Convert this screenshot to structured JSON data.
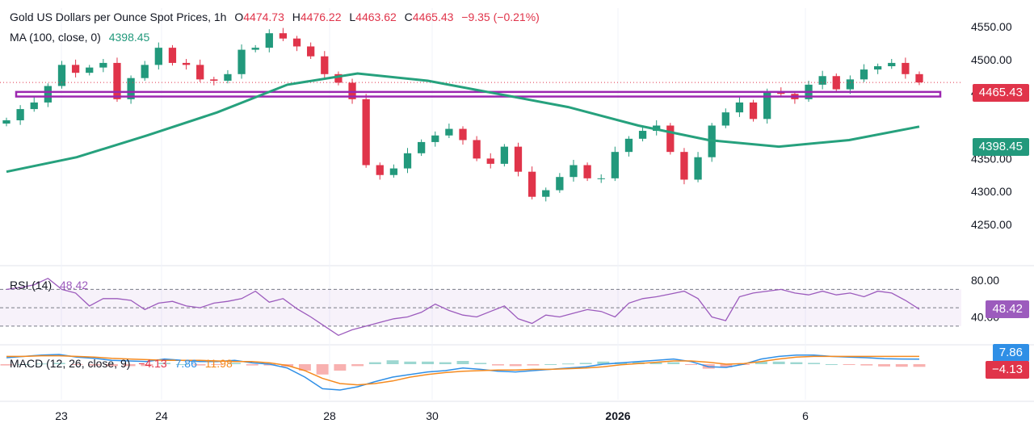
{
  "legend": {
    "title": "Gold US Dollars per Ounce Spot Prices, 1h",
    "o_label": "O",
    "o_value": "4474.73",
    "h_label": "H",
    "h_value": "4476.22",
    "l_label": "L",
    "l_value": "4463.62",
    "c_label": "C",
    "c_value": "4465.43",
    "change": "−9.35 (−0.21%)",
    "ma_label": "MA (100, close, 0)",
    "ma_value": "4398.45",
    "rsi_label": "RSI (14)",
    "rsi_value": "48.42",
    "macd_label": "MACD (12, 26, close, 9)",
    "macd_hist": "−4.13",
    "macd_line": "7.86",
    "macd_signal": "11.98"
  },
  "badges": {
    "price": "4465.43",
    "ma": "4398.45",
    "rsi": "48.42",
    "macd_line": "7.86",
    "macd_hist": "−4.13"
  },
  "colors": {
    "up": "#22997c",
    "down": "#e0344a",
    "ma": "#26a17d",
    "support": "#9c27b0",
    "rsi": "#9c5bbd",
    "macd": "#2f8fe6",
    "signal": "#f58a1f"
  },
  "chart_data": [
    {
      "type": "candlestick",
      "title": "Gold US Dollars per Ounce Spot Prices, 1h",
      "ylim": [
        4250,
        4560
      ],
      "y_ticks": [
        "4550.00",
        "4500.00",
        "4450.00",
        "4350.00",
        "4300.00",
        "4250.00"
      ],
      "x_ticks": [
        "23",
        "24",
        "28",
        "30",
        "2026",
        "6"
      ],
      "support_zone": [
        4444,
        4451
      ],
      "last_price": 4465.43,
      "close_path": [
        {
          "x": "22 Dec",
          "close": 4408
        },
        {
          "x": "22 Dec",
          "close": 4425
        },
        {
          "x": "22 Dec",
          "close": 4435
        },
        {
          "x": "23 Dec",
          "close": 4460
        },
        {
          "x": "23 Dec",
          "close": 4492
        },
        {
          "x": "23 Dec",
          "close": 4480
        },
        {
          "x": "23 Dec",
          "close": 4488
        },
        {
          "x": "23 Dec",
          "close": 4495
        },
        {
          "x": "23 Dec",
          "close": 4440
        },
        {
          "x": "23 Dec",
          "close": 4472
        },
        {
          "x": "24 Dec",
          "close": 4492
        },
        {
          "x": "24 Dec",
          "close": 4518
        },
        {
          "x": "24 Dec",
          "close": 4495
        },
        {
          "x": "24 Dec",
          "close": 4492
        },
        {
          "x": "26 Dec",
          "close": 4470
        },
        {
          "x": "26 Dec",
          "close": 4468
        },
        {
          "x": "26 Dec",
          "close": 4478
        },
        {
          "x": "26 Dec",
          "close": 4515
        },
        {
          "x": "26 Dec",
          "close": 4518
        },
        {
          "x": "26 Dec",
          "close": 4540
        },
        {
          "x": "26 Dec",
          "close": 4532
        },
        {
          "x": "28 Dec",
          "close": 4520
        },
        {
          "x": "28 Dec",
          "close": 4505
        },
        {
          "x": "28 Dec",
          "close": 4478
        },
        {
          "x": "28 Dec",
          "close": 4465
        },
        {
          "x": "29 Dec",
          "close": 4440
        },
        {
          "x": "29 Dec",
          "close": 4340
        },
        {
          "x": "29 Dec",
          "close": 4325
        },
        {
          "x": "29 Dec",
          "close": 4335
        },
        {
          "x": "30 Dec",
          "close": 4358
        },
        {
          "x": "30 Dec",
          "close": 4375
        },
        {
          "x": "30 Dec",
          "close": 4385
        },
        {
          "x": "30 Dec",
          "close": 4395
        },
        {
          "x": "30 Dec",
          "close": 4378
        },
        {
          "x": "31 Dec",
          "close": 4350
        },
        {
          "x": "31 Dec",
          "close": 4342
        },
        {
          "x": "31 Dec",
          "close": 4368
        },
        {
          "x": "31 Dec",
          "close": 4330
        },
        {
          "x": "31 Dec",
          "close": 4292
        },
        {
          "x": "31 Dec",
          "close": 4302
        },
        {
          "x": "31 Dec",
          "close": 4322
        },
        {
          "x": "1 Jan",
          "close": 4340
        },
        {
          "x": "1 Jan",
          "close": 4320
        },
        {
          "x": "2 Jan",
          "close": 4320
        },
        {
          "x": "2 Jan",
          "close": 4360
        },
        {
          "x": "2 Jan",
          "close": 4380
        },
        {
          "x": "2 Jan",
          "close": 4392
        },
        {
          "x": "2 Jan",
          "close": 4400
        },
        {
          "x": "2 Jan",
          "close": 4360
        },
        {
          "x": "2 Jan",
          "close": 4318
        },
        {
          "x": "4 Jan",
          "close": 4352
        },
        {
          "x": "5 Jan",
          "close": 4400
        },
        {
          "x": "5 Jan",
          "close": 4420
        },
        {
          "x": "5 Jan",
          "close": 4435
        },
        {
          "x": "5 Jan",
          "close": 4410
        },
        {
          "x": "5 Jan",
          "close": 4450
        },
        {
          "x": "5 Jan",
          "close": 4448
        },
        {
          "x": "6 Jan",
          "close": 4440
        },
        {
          "x": "6 Jan",
          "close": 4462
        },
        {
          "x": "6 Jan",
          "close": 4475
        },
        {
          "x": "6 Jan",
          "close": 4455
        },
        {
          "x": "6 Jan",
          "close": 4470
        },
        {
          "x": "7 Jan",
          "close": 4485
        },
        {
          "x": "7 Jan",
          "close": 4490
        },
        {
          "x": "7 Jan",
          "close": 4495
        },
        {
          "x": "7 Jan",
          "close": 4478
        },
        {
          "x": "7 Jan",
          "close": 4465.43
        }
      ],
      "ma_path": [
        {
          "x": "22 Dec",
          "value": 4330
        },
        {
          "x": "23 Dec",
          "value": 4352
        },
        {
          "x": "24 Dec",
          "value": 4385
        },
        {
          "x": "26 Dec",
          "value": 4420
        },
        {
          "x": "28 Dec",
          "value": 4462
        },
        {
          "x": "29 Dec",
          "value": 4479
        },
        {
          "x": "30 Dec",
          "value": 4468
        },
        {
          "x": "31 Dec",
          "value": 4448
        },
        {
          "x": "1 Jan",
          "value": 4428
        },
        {
          "x": "2 Jan",
          "value": 4400
        },
        {
          "x": "4 Jan",
          "value": 4378
        },
        {
          "x": "5 Jan",
          "value": 4368
        },
        {
          "x": "6 Jan",
          "value": 4378
        },
        {
          "x": "7 Jan",
          "value": 4398.45
        }
      ]
    },
    {
      "type": "line",
      "title": "RSI (14)",
      "ylim": [
        20,
        90
      ],
      "y_ticks": [
        "80.00",
        "40.00"
      ],
      "bands": [
        70,
        50,
        30
      ],
      "last": 48.42,
      "values": [
        70,
        72,
        75,
        82,
        70,
        66,
        52,
        60,
        60,
        58,
        48,
        55,
        57,
        52,
        50,
        55,
        57,
        60,
        68,
        56,
        60,
        49,
        40,
        30,
        20,
        26,
        30,
        34,
        38,
        40,
        45,
        54,
        47,
        42,
        40,
        46,
        52,
        38,
        33,
        42,
        40,
        44,
        48,
        46,
        40,
        55,
        60,
        62,
        65,
        68,
        60,
        40,
        36,
        62,
        66,
        68,
        70,
        66,
        64,
        68,
        64,
        66,
        62,
        68,
        66,
        58,
        48.42
      ]
    },
    {
      "type": "line",
      "title": "MACD (12, 26, close, 9)",
      "ylim": [
        -45,
        22
      ],
      "series": [
        {
          "name": "MACD",
          "values": [
            10,
            12,
            14,
            15,
            11,
            9,
            6,
            5,
            4,
            8,
            6,
            4,
            4,
            6,
            2,
            0,
            -6,
            -20,
            -38,
            -40,
            -35,
            -27,
            -20,
            -16,
            -12,
            -10,
            -6,
            -8,
            -11,
            -12,
            -10,
            -8,
            -6,
            -4,
            0,
            2,
            4,
            6,
            8,
            4,
            -4,
            -5,
            0,
            8,
            12,
            14,
            14,
            12,
            11,
            10,
            8.5,
            8,
            7.86
          ]
        },
        {
          "name": "Signal",
          "values": [
            12,
            12,
            13,
            13,
            12,
            11,
            9,
            8,
            7,
            6,
            6,
            6,
            5,
            4,
            4,
            2,
            -2,
            -10,
            -22,
            -30,
            -32,
            -30,
            -26,
            -20,
            -16,
            -13,
            -11,
            -10,
            -9,
            -9,
            -8,
            -8,
            -7,
            -6,
            -4,
            -1,
            1,
            3,
            5,
            5,
            3,
            0,
            1,
            4,
            8,
            11,
            12,
            12,
            12,
            12,
            12,
            12,
            11.98
          ]
        }
      ],
      "histogram": [
        -2,
        0,
        1,
        2,
        -1,
        -2,
        -3,
        -3,
        -3,
        2,
        0,
        -2,
        -1,
        2,
        -2,
        -2,
        -4,
        -10,
        -16,
        -10,
        -3,
        3,
        6,
        4,
        4,
        3,
        5,
        2,
        -2,
        -3,
        -2,
        0,
        1,
        2,
        4,
        3,
        3,
        3,
        3,
        -1,
        -7,
        -5,
        -1,
        4,
        4,
        3,
        2,
        0,
        -1,
        -2,
        -3.5,
        -4,
        -4.13
      ]
    }
  ]
}
